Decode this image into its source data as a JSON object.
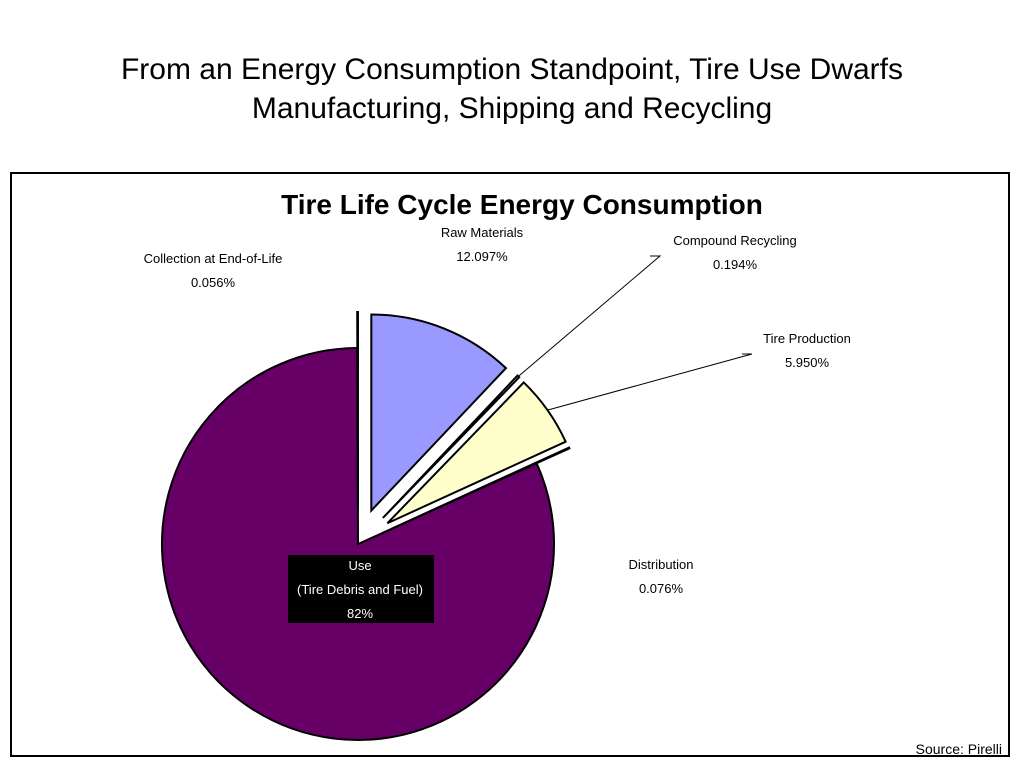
{
  "slide": {
    "title_line1": "From an Energy Consumption Standpoint, Tire Use Dwarfs",
    "title_line2": "Manufacturing, Shipping and Recycling",
    "source": "Source:  Pirelli"
  },
  "chart_data": {
    "type": "pie",
    "title": "Tire Life Cycle Energy Consumption",
    "start_angle_deg": 0,
    "direction": "clockwise",
    "slices": [
      {
        "key": "raw",
        "name": "Raw Materials",
        "value": 12.097,
        "value_label": "12.097%",
        "color": "#9999ff",
        "exploded": true
      },
      {
        "key": "compound",
        "name": "Compound Recycling",
        "value": 0.194,
        "value_label": "0.194%",
        "color": "#ffffff",
        "exploded": true
      },
      {
        "key": "production",
        "name": "Tire Production",
        "value": 5.95,
        "value_label": "5.950%",
        "color": "#ffffcc",
        "exploded": true
      },
      {
        "key": "distribution",
        "name": "Distribution",
        "value": 0.076,
        "value_label": "0.076%",
        "color": "#ffffff",
        "exploded": true
      },
      {
        "key": "use",
        "name": "Use",
        "name_line2": "(Tire Debris and Fuel)",
        "value": 82,
        "value_label": "82%",
        "color": "#660066",
        "exploded": false
      },
      {
        "key": "collection",
        "name": "Collection at End-of-Life",
        "value": 0.056,
        "value_label": "0.056%",
        "color": "#ffffff",
        "exploded": true
      }
    ]
  }
}
